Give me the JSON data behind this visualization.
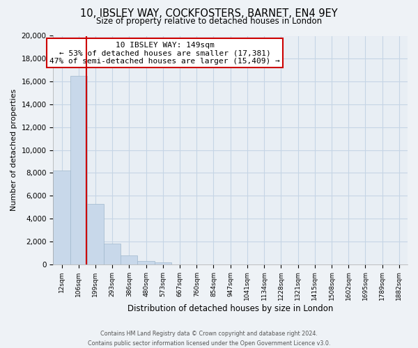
{
  "title": "10, IBSLEY WAY, COCKFOSTERS, BARNET, EN4 9EY",
  "subtitle": "Size of property relative to detached houses in London",
  "xlabel": "Distribution of detached houses by size in London",
  "ylabel": "Number of detached properties",
  "categories": [
    "12sqm",
    "106sqm",
    "199sqm",
    "293sqm",
    "386sqm",
    "480sqm",
    "573sqm",
    "667sqm",
    "760sqm",
    "854sqm",
    "947sqm",
    "1041sqm",
    "1134sqm",
    "1228sqm",
    "1321sqm",
    "1415sqm",
    "1508sqm",
    "1602sqm",
    "1695sqm",
    "1789sqm",
    "1882sqm"
  ],
  "values": [
    8200,
    16500,
    5300,
    1800,
    750,
    300,
    150,
    0,
    0,
    0,
    0,
    0,
    0,
    0,
    0,
    0,
    0,
    0,
    0,
    0,
    0
  ],
  "bar_color": "#c8d8ea",
  "bar_edge_color": "#a0b8cc",
  "property_line_x": 1.45,
  "property_line_color": "#cc0000",
  "annotation_title": "10 IBSLEY WAY: 149sqm",
  "annotation_line1": "← 53% of detached houses are smaller (17,381)",
  "annotation_line2": "47% of semi-detached houses are larger (15,409) →",
  "annotation_box_facecolor": "#ffffff",
  "annotation_box_edgecolor": "#cc0000",
  "ylim": [
    0,
    20000
  ],
  "yticks": [
    0,
    2000,
    4000,
    6000,
    8000,
    10000,
    12000,
    14000,
    16000,
    18000,
    20000
  ],
  "footer_line1": "Contains HM Land Registry data © Crown copyright and database right 2024.",
  "footer_line2": "Contains public sector information licensed under the Open Government Licence v3.0.",
  "background_color": "#eef2f6",
  "plot_bg_color": "#e8eef4",
  "grid_color": "#c5d5e5"
}
